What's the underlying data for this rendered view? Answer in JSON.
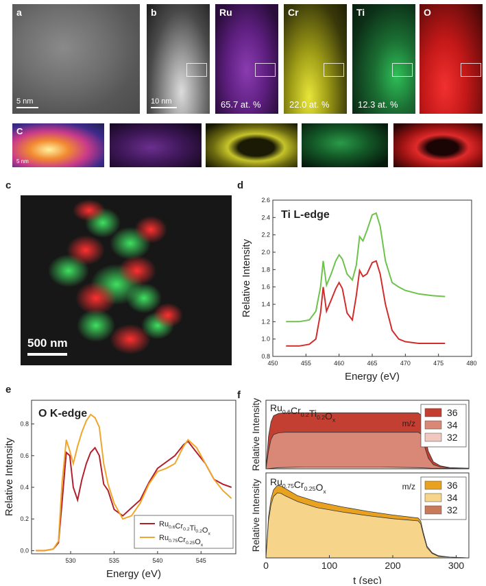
{
  "figure": {
    "panel_letters": [
      "a",
      "b",
      "c",
      "d",
      "e",
      "f"
    ],
    "row1": {
      "scale_a": "5 nm",
      "scale_b": "10 nm",
      "maps": [
        {
          "label": "Ru",
          "atp": "65.7 at. %",
          "color": "#7a2f9c"
        },
        {
          "label": "Cr",
          "atp": "22.0 at. %",
          "color": "#c8c61c"
        },
        {
          "label": "Ti",
          "atp": "12.3 at. %",
          "color": "#1d8a3c"
        },
        {
          "label": "O",
          "atp": "",
          "color": "#d21e1e"
        }
      ]
    },
    "row2": {
      "letter": "C",
      "scale": "5 nm"
    },
    "panel_c": {
      "scale": "500 nm"
    }
  },
  "chart_data": [
    {
      "panel": "d",
      "type": "line",
      "annotation": "Ti L-edge",
      "xlabel": "Energy (eV)",
      "ylabel": "Relative Intensity",
      "xlim": [
        450,
        480
      ],
      "ylim": [
        0.8,
        2.6
      ],
      "xticks": [
        "450",
        "455",
        "460",
        "465",
        "470",
        "475",
        "480"
      ],
      "yticks": [
        "0.8",
        "1.0",
        "1.2",
        "1.4",
        "1.6",
        "1.8",
        "2.0",
        "2.2",
        "2.4",
        "2.6"
      ],
      "series": [
        {
          "color": "#6cc24a",
          "x": [
            452,
            454,
            455.5,
            456.5,
            457.2,
            457.6,
            458.1,
            458.8,
            459.5,
            460,
            460.5,
            461.2,
            462,
            462.6,
            463.1,
            463.6,
            464.2,
            465,
            465.6,
            466.2,
            467,
            468,
            469,
            470,
            472,
            474,
            476
          ],
          "y": [
            1.2,
            1.2,
            1.22,
            1.32,
            1.6,
            1.9,
            1.62,
            1.75,
            1.9,
            1.97,
            1.92,
            1.75,
            1.68,
            1.85,
            2.18,
            2.13,
            2.25,
            2.43,
            2.45,
            2.3,
            1.9,
            1.65,
            1.6,
            1.56,
            1.52,
            1.5,
            1.49
          ]
        },
        {
          "color": "#d12c2c",
          "x": [
            452,
            454,
            455.5,
            456.5,
            457.2,
            457.6,
            458.1,
            458.8,
            459.5,
            460,
            460.5,
            461.2,
            462,
            462.6,
            463.1,
            463.6,
            464.2,
            465,
            465.6,
            466.2,
            467,
            468,
            469,
            470,
            472,
            474,
            476
          ],
          "y": [
            0.92,
            0.92,
            0.94,
            1.0,
            1.3,
            1.6,
            1.32,
            1.45,
            1.58,
            1.65,
            1.58,
            1.3,
            1.22,
            1.5,
            1.79,
            1.72,
            1.75,
            1.88,
            1.9,
            1.75,
            1.4,
            1.1,
            1.0,
            0.97,
            0.95,
            0.95,
            0.95
          ]
        }
      ]
    },
    {
      "panel": "e",
      "type": "line",
      "annotation": "O K-edge",
      "xlabel": "Energy (eV)",
      "ylabel": "Relative Intensity",
      "xlim": [
        525.5,
        549
      ],
      "ylim": [
        -0.02,
        0.95
      ],
      "xticks": [
        "530",
        "535",
        "540",
        "545"
      ],
      "yticks": [
        "0.0",
        "0.2",
        "0.4",
        "0.6",
        "0.8"
      ],
      "series": [
        {
          "name": "Ru0.6Cr0.2Ti0.2Ox",
          "color": "#b0202b",
          "x": [
            526,
            527,
            528,
            528.6,
            529,
            529.5,
            529.9,
            530.3,
            530.8,
            531.3,
            531.8,
            532.3,
            532.8,
            533.3,
            533.8,
            534.3,
            535,
            536,
            537,
            538,
            539,
            540,
            541,
            542,
            543,
            543.5,
            544.5,
            545.5,
            546.5,
            547.5,
            548.5
          ],
          "y": [
            0,
            0,
            0.01,
            0.05,
            0.3,
            0.62,
            0.6,
            0.4,
            0.32,
            0.45,
            0.55,
            0.62,
            0.65,
            0.6,
            0.42,
            0.38,
            0.26,
            0.22,
            0.27,
            0.32,
            0.43,
            0.52,
            0.56,
            0.6,
            0.67,
            0.69,
            0.62,
            0.55,
            0.45,
            0.42,
            0.4
          ]
        },
        {
          "name": "Ru0.75Cr0.25Ox",
          "color": "#f1a52a",
          "x": [
            526,
            527,
            528,
            528.6,
            529,
            529.5,
            529.9,
            530.3,
            530.8,
            531.3,
            531.8,
            532.3,
            532.8,
            533.3,
            533.8,
            534.3,
            535,
            536,
            537,
            538,
            539,
            540,
            541,
            542,
            543,
            543.5,
            544.5,
            545.5,
            546.5,
            547.5,
            548.5
          ],
          "y": [
            0,
            0,
            0.01,
            0.06,
            0.42,
            0.7,
            0.63,
            0.55,
            0.66,
            0.75,
            0.82,
            0.86,
            0.84,
            0.78,
            0.55,
            0.42,
            0.3,
            0.2,
            0.22,
            0.3,
            0.42,
            0.5,
            0.52,
            0.55,
            0.66,
            0.7,
            0.65,
            0.55,
            0.45,
            0.38,
            0.33
          ]
        }
      ],
      "legend": [
        "Ru0.6Cr0.2Ti0.2Ox",
        "Ru0.75Cr0.25Ox"
      ]
    },
    {
      "panel": "f",
      "type": "area",
      "xlabel": "t (sec)",
      "ylabel": "Relative Intensity",
      "xlim": [
        0,
        320
      ],
      "xticks": [
        "0",
        "100",
        "200",
        "300"
      ],
      "legend_title": "m/z",
      "top": {
        "formula": {
          "base": [
            "Ru",
            "Cr",
            "Ti",
            "O"
          ],
          "subs": [
            "0.6",
            "0.2",
            "0.2",
            "x"
          ]
        },
        "series": [
          {
            "name": "36",
            "color": "#c23f31",
            "x": [
              0,
              4,
              8,
              12,
              20,
              30,
              60,
              120,
              180,
              240,
              246,
              250,
              256,
              264,
              275,
              290,
              320
            ],
            "y": [
              0,
              0.55,
              0.8,
              0.9,
              0.94,
              0.95,
              0.95,
              0.95,
              0.95,
              0.95,
              0.9,
              0.6,
              0.3,
              0.12,
              0.05,
              0.02,
              0.01
            ]
          },
          {
            "name": "34",
            "color": "#d98878",
            "x": [
              0,
              4,
              8,
              12,
              20,
              30,
              60,
              120,
              180,
              240,
              246,
              250,
              256,
              264,
              275,
              290,
              320
            ],
            "y": [
              0,
              0.3,
              0.5,
              0.58,
              0.61,
              0.62,
              0.62,
              0.62,
              0.62,
              0.62,
              0.58,
              0.38,
              0.18,
              0.07,
              0.03,
              0.01,
              0
            ]
          },
          {
            "name": "32",
            "color": "#f0c8c0",
            "x": [
              0,
              20,
              60,
              120,
              180,
              240,
              260,
              320
            ],
            "y": [
              0,
              0.02,
              0.03,
              0.03,
              0.03,
              0.02,
              0.01,
              0
            ]
          }
        ]
      },
      "bottom": {
        "formula": {
          "base": [
            "Ru",
            "Cr",
            "O"
          ],
          "subs": [
            "0.75",
            "0.25",
            "x"
          ]
        },
        "series": [
          {
            "name": "36",
            "color": "#e8a220",
            "x": [
              0,
              4,
              8,
              12,
              18,
              24,
              30,
              50,
              80,
              120,
              160,
              200,
              240,
              244,
              248,
              254,
              262,
              272,
              290,
              320
            ],
            "y": [
              0,
              0.55,
              0.8,
              0.92,
              0.98,
              0.97,
              0.94,
              0.84,
              0.76,
              0.69,
              0.63,
              0.58,
              0.54,
              0.5,
              0.35,
              0.16,
              0.07,
              0.03,
              0.01,
              0
            ]
          },
          {
            "name": "34",
            "color": "#f6d48a",
            "x": [
              0,
              4,
              8,
              12,
              18,
              24,
              30,
              50,
              80,
              120,
              160,
              200,
              240,
              244,
              248,
              254,
              262,
              272,
              290,
              320
            ],
            "y": [
              0,
              0.5,
              0.72,
              0.83,
              0.88,
              0.87,
              0.84,
              0.76,
              0.68,
              0.62,
              0.57,
              0.53,
              0.5,
              0.46,
              0.32,
              0.14,
              0.06,
              0.02,
              0.01,
              0
            ]
          },
          {
            "name": "32",
            "color": "#c97a5a",
            "x": [
              0,
              320
            ],
            "y": [
              0,
              0
            ]
          }
        ]
      }
    }
  ]
}
